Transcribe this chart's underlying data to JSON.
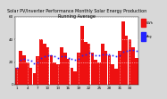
{
  "title": "Solar PV/Inverter Performance Monthly Solar Energy Production Running Average",
  "bar_values": [
    15,
    30,
    26,
    20,
    15,
    10,
    25,
    40,
    36,
    33,
    26,
    20,
    18,
    33,
    28,
    23,
    15,
    12,
    28,
    52,
    38,
    36,
    28,
    22,
    20,
    36,
    30,
    26,
    18,
    14,
    30,
    56,
    43,
    40,
    33,
    24
  ],
  "running_avg": [
    15,
    22,
    23,
    22,
    21,
    19,
    20,
    24,
    25,
    26,
    26,
    25,
    24,
    25,
    25,
    24,
    23,
    22,
    23,
    26,
    27,
    28,
    27,
    26,
    26,
    27,
    27,
    27,
    26,
    25,
    26,
    29,
    30,
    31,
    31,
    30
  ],
  "bar_color": "#ee1111",
  "avg_color": "#2222ff",
  "background_color": "#d8d8d8",
  "plot_bg_color": "#dd2222",
  "grid_color": "#ffffff",
  "ylim": [
    0,
    60
  ],
  "n_bars": 36,
  "title_fontsize": 3.5,
  "tick_fontsize": 3.0,
  "legend_labels": [
    "kWh",
    "Avg"
  ],
  "legend_colors": [
    "#ee1111",
    "#2222ff"
  ]
}
